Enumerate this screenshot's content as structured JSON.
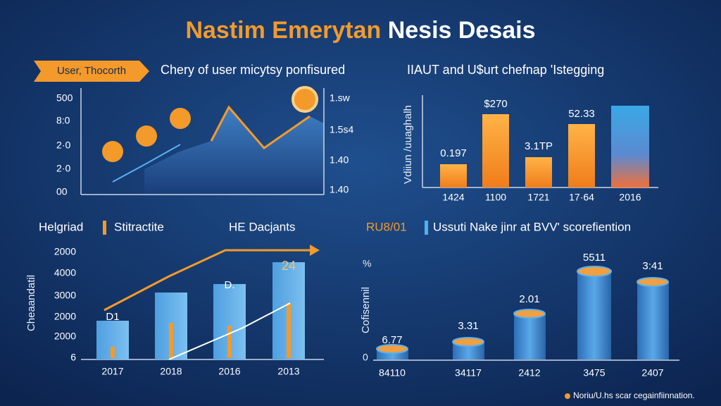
{
  "title": {
    "highlight": "Nastim Emerytan",
    "rest": "Nesis Desais"
  },
  "top_left": {
    "tag": "User, Thocorth",
    "subtitle": "Chery of user micytsy ponfisured",
    "left_ticks": [
      "500",
      "8:0",
      "2·0",
      "2·0",
      "00"
    ],
    "right_ticks": [
      "1.sw",
      "1.5s4",
      "1.40",
      "1.40"
    ]
  },
  "top_right": {
    "subtitle": "IIAUT and U$urt chefnap 'Istegging",
    "axis_label": "Vdiiun /uuaghalh",
    "bar_labels": [
      "0.197",
      "$270",
      "3.1TP",
      "52.33"
    ],
    "categories": [
      "1424",
      "1100",
      "1721",
      "17·64",
      "2016"
    ]
  },
  "bottom_left": {
    "label_a": "Helgriad",
    "label_b": "Stitractite",
    "label_c": "HE Dacjants",
    "axis_label": "Cheaandatil",
    "ticks": [
      "2000",
      "4000",
      "3000",
      "2000",
      "2000",
      "6"
    ],
    "bar_labels": [
      "D1",
      "D.",
      "24"
    ],
    "categories": [
      "2017",
      "2018",
      "2016",
      "2013"
    ]
  },
  "bottom_right": {
    "code": "RU8/01",
    "subtitle": "Ussuti Nake jinr at BVV' scorefiention",
    "axis_label": "Cofisennil",
    "ticks": [
      "%",
      "0"
    ],
    "bar_labels": [
      "6.77",
      "3.31",
      "2.01",
      "5511",
      "3:41"
    ],
    "categories": [
      "84110",
      "34117",
      "2412",
      "3475",
      "2407"
    ]
  },
  "footer": "Noriu/U.hs scar cegainfiinnation."
}
